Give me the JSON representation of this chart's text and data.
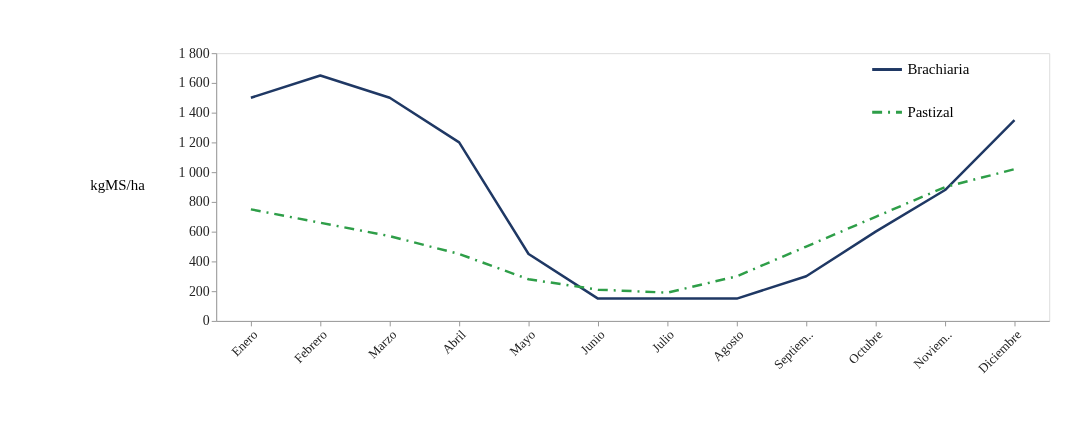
{
  "chart_data": {
    "type": "line",
    "ylabel": "kgMS/ha",
    "categories": [
      "Enero",
      "Febrero",
      "Marzo",
      "Abril",
      "Mayo",
      "Junio",
      "Julio",
      "Agosto",
      "Septiem..",
      "Octubre",
      "Noviem..",
      "Diciembre"
    ],
    "series": [
      {
        "name": "Brachiaria",
        "color": "#1f3864",
        "line_style": "solid",
        "values": [
          1500,
          1650,
          1500,
          1200,
          450,
          150,
          150,
          150,
          300,
          600,
          880,
          1350
        ]
      },
      {
        "name": "Pastizal",
        "color": "#2e9e48",
        "line_style": "dashed",
        "values": [
          750,
          660,
          570,
          450,
          280,
          210,
          190,
          300,
          500,
          700,
          900,
          1020
        ]
      }
    ],
    "ylim": [
      0,
      1800
    ],
    "yticks": [
      0,
      200,
      400,
      600,
      800,
      {
        "value": 1000,
        "label": "1 000"
      },
      {
        "value": 1200,
        "label": "1 200"
      },
      {
        "value": 1400,
        "label": "1 400"
      },
      {
        "value": 1600,
        "label": "1 600"
      },
      {
        "value": 1800,
        "label": "1 800"
      }
    ],
    "grid": false,
    "legend": "top right",
    "marker": "none"
  }
}
